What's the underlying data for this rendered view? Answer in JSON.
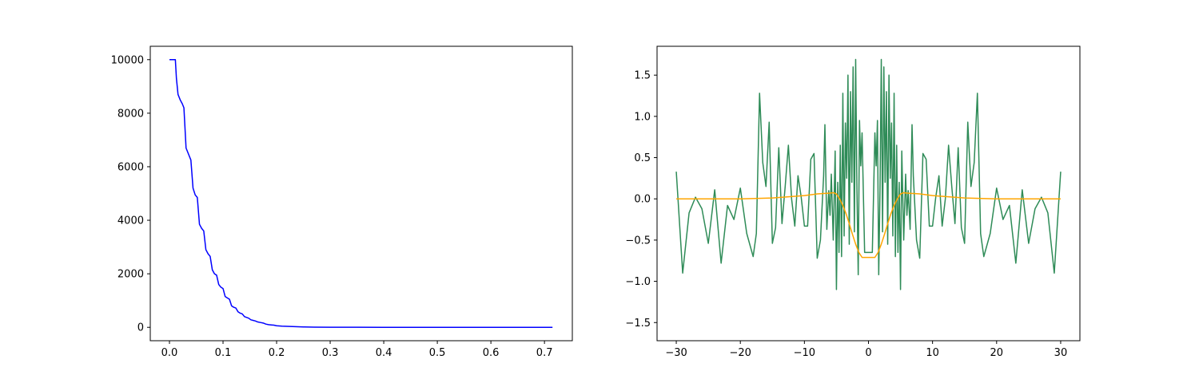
{
  "chart_data": [
    {
      "type": "line",
      "title": "",
      "xlabel": "",
      "ylabel": "",
      "xlim": [
        -0.0358,
        0.752
      ],
      "ylim": [
        -500,
        10500
      ],
      "grid": false,
      "x_ticks": [
        "0.0",
        "0.1",
        "0.2",
        "0.3",
        "0.4",
        "0.5",
        "0.6",
        "0.7"
      ],
      "y_ticks": [
        "0",
        "2000",
        "4000",
        "6000",
        "8000",
        "10000"
      ],
      "series": [
        {
          "color": "#0000ff",
          "x": [
            0.0,
            0.011,
            0.013,
            0.016,
            0.02,
            0.024,
            0.027,
            0.031,
            0.036,
            0.04,
            0.044,
            0.048,
            0.052,
            0.056,
            0.06,
            0.064,
            0.068,
            0.072,
            0.076,
            0.08,
            0.084,
            0.088,
            0.092,
            0.096,
            0.1,
            0.104,
            0.108,
            0.112,
            0.116,
            0.12,
            0.124,
            0.128,
            0.132,
            0.136,
            0.14,
            0.144,
            0.148,
            0.152,
            0.156,
            0.16,
            0.165,
            0.17,
            0.175,
            0.18,
            0.185,
            0.19,
            0.195,
            0.2,
            0.21,
            0.22,
            0.23,
            0.24,
            0.25,
            0.27,
            0.3,
            0.35,
            0.4,
            0.5,
            0.6,
            0.715
          ],
          "y": [
            10000,
            10000,
            9300,
            8700,
            8500,
            8350,
            8200,
            6700,
            6450,
            6250,
            5200,
            4950,
            4850,
            3850,
            3700,
            3600,
            2900,
            2750,
            2650,
            2150,
            2000,
            1950,
            1600,
            1500,
            1450,
            1150,
            1100,
            1050,
            800,
            750,
            720,
            580,
            530,
            500,
            400,
            370,
            340,
            280,
            260,
            240,
            200,
            180,
            160,
            120,
            100,
            90,
            80,
            60,
            45,
            35,
            28,
            20,
            15,
            8,
            4,
            2,
            1,
            0,
            0,
            0
          ]
        }
      ]
    },
    {
      "type": "line",
      "title": "",
      "xlabel": "",
      "ylabel": "",
      "xlim": [
        -33,
        33
      ],
      "ylim": [
        -1.72,
        1.85
      ],
      "grid": false,
      "x_ticks": [
        "−30",
        "−20",
        "−10",
        "0",
        "10",
        "20",
        "30"
      ],
      "y_ticks": [
        "−1.5",
        "−1.0",
        "−0.5",
        "0.0",
        "0.5",
        "1.0",
        "1.5"
      ],
      "series": [
        {
          "color": "#2e8b57",
          "x": [
            -30,
            -29,
            -28,
            -27,
            -26,
            -25,
            -24,
            -23,
            -22,
            -21,
            -20,
            -19,
            -18,
            -17.5,
            -17,
            -16.5,
            -16,
            -15.5,
            -15,
            -14.5,
            -14,
            -13.5,
            -13,
            -12.5,
            -12,
            -11.5,
            -11,
            -10.5,
            -10,
            -9.5,
            -9,
            -8.5,
            -8,
            -7.5,
            -7,
            -6.8,
            -6.5,
            -6.2,
            -6,
            -5.8,
            -5.5,
            -5.2,
            -5,
            -4.8,
            -4.6,
            -4.4,
            -4.2,
            -4,
            -3.8,
            -3.6,
            -3.4,
            -3.2,
            -3,
            -2.8,
            -2.6,
            -2.4,
            -2.2,
            -2,
            -1.8,
            -1.6,
            -1.4,
            -1.2,
            -1,
            -0.6,
            0,
            0.6,
            1,
            1.2,
            1.4,
            1.6,
            1.8,
            2,
            2.2,
            2.4,
            2.6,
            2.8,
            3,
            3.2,
            3.4,
            3.6,
            3.8,
            4,
            4.2,
            4.4,
            4.6,
            4.8,
            5,
            5.2,
            5.5,
            5.8,
            6,
            6.2,
            6.5,
            6.8,
            7,
            7.5,
            8,
            8.5,
            9,
            9.5,
            10,
            10.5,
            11,
            11.5,
            12,
            12.5,
            13,
            13.5,
            14,
            14.5,
            15,
            15.5,
            16,
            16.5,
            17,
            17.5,
            18,
            19,
            20,
            21,
            22,
            23,
            24,
            25,
            26,
            27,
            28,
            29,
            30
          ],
          "y": [
            0.33,
            -0.9,
            -0.17,
            0.02,
            -0.12,
            -0.54,
            0.11,
            -0.78,
            -0.08,
            -0.25,
            0.13,
            -0.42,
            -0.7,
            -0.42,
            1.28,
            0.44,
            0.15,
            0.93,
            -0.54,
            -0.35,
            0.62,
            -0.3,
            0.15,
            0.65,
            0.0,
            -0.33,
            0.28,
            0.02,
            -0.33,
            -0.33,
            0.48,
            0.55,
            -0.72,
            -0.5,
            0.28,
            0.9,
            -0.37,
            0.1,
            -0.2,
            0.3,
            -0.5,
            0.58,
            -1.1,
            0.2,
            -0.65,
            0.65,
            -0.7,
            1.28,
            -0.45,
            0.92,
            0.25,
            1.5,
            -0.55,
            1.3,
            0.2,
            1.6,
            -0.4,
            1.69,
            0.1,
            -0.92,
            0.95,
            0.4,
            0.8,
            -0.65,
            -0.65,
            -0.65,
            0.8,
            0.4,
            0.95,
            -0.92,
            0.1,
            1.69,
            -0.4,
            1.6,
            0.2,
            1.3,
            -0.55,
            1.5,
            0.25,
            0.92,
            -0.45,
            1.28,
            -0.7,
            0.65,
            -0.65,
            0.2,
            -1.1,
            0.58,
            -0.5,
            0.3,
            -0.2,
            0.1,
            -0.37,
            0.9,
            0.28,
            -0.5,
            -0.72,
            0.55,
            0.48,
            -0.33,
            -0.33,
            0.02,
            0.28,
            -0.33,
            0.0,
            0.65,
            0.15,
            -0.3,
            0.62,
            -0.35,
            -0.54,
            0.93,
            0.15,
            0.44,
            1.28,
            -0.42,
            -0.7,
            -0.42,
            0.13,
            -0.25,
            -0.08,
            -0.78,
            0.11,
            -0.54,
            -0.12,
            0.02,
            -0.17,
            -0.9,
            0.33
          ]
        },
        {
          "color": "#ffa500",
          "x": [
            -30,
            -25,
            -20,
            -15,
            -10,
            -8,
            -6,
            -5.5,
            -5,
            -4.5,
            -4,
            -3.5,
            -3,
            -2.5,
            -2,
            -1.5,
            -1,
            0,
            1,
            1.5,
            2,
            2.5,
            3,
            3.5,
            4,
            4.5,
            5,
            5.5,
            6,
            8,
            10,
            15,
            20,
            25,
            30
          ],
          "y": [
            0.0,
            0.0,
            0.0,
            0.01,
            0.04,
            0.06,
            0.07,
            0.075,
            0.06,
            0.0,
            -0.08,
            -0.18,
            -0.3,
            -0.43,
            -0.55,
            -0.65,
            -0.71,
            -0.71,
            -0.71,
            -0.65,
            -0.55,
            -0.43,
            -0.3,
            -0.18,
            -0.08,
            0.0,
            0.06,
            0.075,
            0.07,
            0.06,
            0.04,
            0.01,
            0.0,
            0.0,
            0.0
          ]
        }
      ]
    }
  ]
}
